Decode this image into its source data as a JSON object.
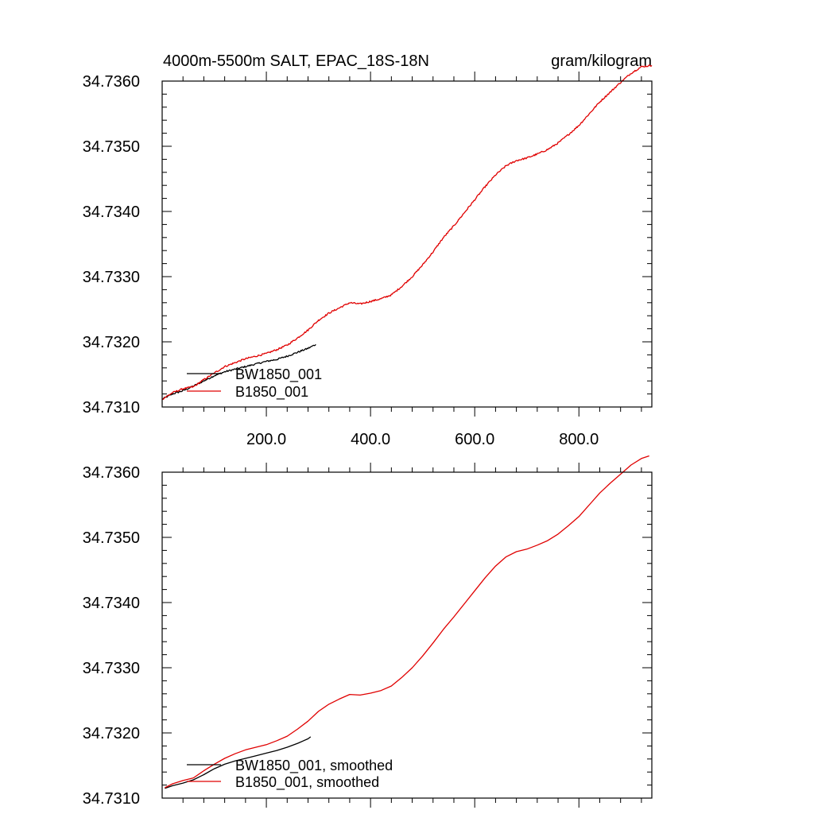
{
  "chart_data": [
    {
      "type": "line",
      "title": "4000m-5500m SALT, EPAC_18S-18N",
      "units": "gram/kilogram",
      "xlabel": "",
      "ylabel": "",
      "xlim": [
        0,
        940
      ],
      "ylim": [
        34.731,
        34.736
      ],
      "xticks": [
        200,
        400,
        600,
        800
      ],
      "xtick_labels": [
        "200.0",
        "400.0",
        "600.0",
        "800.0"
      ],
      "yticks": [
        34.731,
        34.732,
        34.733,
        34.734,
        34.735,
        34.736
      ],
      "ytick_labels": [
        "34.7310",
        "34.7320",
        "34.7330",
        "34.7340",
        "34.7350",
        "34.7360"
      ],
      "legend_position": "bottom-left",
      "noisy": true,
      "series": [
        {
          "name": "BW1850_001",
          "color": "#000000",
          "x": [
            0,
            20,
            40,
            60,
            80,
            100,
            120,
            140,
            160,
            180,
            200,
            220,
            240,
            260,
            280,
            295
          ],
          "y": [
            34.73112,
            34.7312,
            34.73125,
            34.73132,
            34.7314,
            34.73148,
            34.73154,
            34.73158,
            34.73162,
            34.73166,
            34.7317,
            34.73173,
            34.73178,
            34.73184,
            34.7319,
            34.73196
          ]
        },
        {
          "name": "B1850_001",
          "color": "#e00000",
          "x": [
            0,
            20,
            40,
            60,
            80,
            100,
            120,
            140,
            160,
            180,
            200,
            220,
            240,
            260,
            280,
            300,
            320,
            340,
            360,
            380,
            400,
            420,
            440,
            460,
            480,
            500,
            520,
            540,
            560,
            580,
            600,
            620,
            640,
            660,
            680,
            700,
            720,
            740,
            760,
            780,
            800,
            820,
            840,
            860,
            880,
            900,
            920,
            940
          ],
          "y": [
            34.73112,
            34.73122,
            34.73128,
            34.73131,
            34.73142,
            34.73152,
            34.73162,
            34.73168,
            34.73174,
            34.73178,
            34.73182,
            34.73188,
            34.73195,
            34.73206,
            34.73218,
            34.73233,
            34.73244,
            34.73252,
            34.7326,
            34.73258,
            34.73262,
            34.73266,
            34.73272,
            34.73285,
            34.733,
            34.73318,
            34.73338,
            34.7336,
            34.73378,
            34.73398,
            34.73418,
            34.73438,
            34.73456,
            34.7347,
            34.73478,
            34.73482,
            34.73488,
            34.73495,
            34.73505,
            34.73518,
            34.73532,
            34.7355,
            34.73568,
            34.73583,
            34.73598,
            34.73612,
            34.73622,
            34.73624
          ]
        }
      ]
    },
    {
      "type": "line",
      "title": "",
      "xlabel": "",
      "ylabel": "",
      "xlim": [
        0,
        940
      ],
      "ylim": [
        34.731,
        34.736
      ],
      "xticks": [
        200,
        400,
        600,
        800
      ],
      "xtick_labels": [],
      "yticks": [
        34.731,
        34.732,
        34.733,
        34.734,
        34.735,
        34.736
      ],
      "ytick_labels": [
        "34.7310",
        "34.7320",
        "34.7330",
        "34.7340",
        "34.7350",
        "34.7360"
      ],
      "legend_position": "bottom-left",
      "noisy": false,
      "series": [
        {
          "name": "BW1850_001, smoothed",
          "color": "#000000",
          "x": [
            5,
            20,
            40,
            60,
            80,
            100,
            120,
            140,
            160,
            180,
            200,
            220,
            240,
            260,
            280,
            285
          ],
          "y": [
            34.73115,
            34.73119,
            34.73123,
            34.73128,
            34.73136,
            34.73145,
            34.73152,
            34.73157,
            34.73161,
            34.73165,
            34.73169,
            34.73173,
            34.73178,
            34.73184,
            34.73191,
            34.73194
          ]
        },
        {
          "name": "B1850_001, smoothed",
          "color": "#e00000",
          "x": [
            5,
            20,
            40,
            60,
            80,
            100,
            120,
            140,
            160,
            180,
            200,
            220,
            240,
            260,
            280,
            300,
            320,
            340,
            360,
            380,
            400,
            420,
            440,
            460,
            480,
            500,
            520,
            540,
            560,
            580,
            600,
            620,
            640,
            660,
            680,
            700,
            720,
            740,
            760,
            780,
            800,
            820,
            840,
            860,
            880,
            900,
            920,
            935
          ],
          "y": [
            34.73116,
            34.73122,
            34.73127,
            34.73131,
            34.73142,
            34.73152,
            34.73161,
            34.73168,
            34.73174,
            34.73178,
            34.73182,
            34.73188,
            34.73195,
            34.73206,
            34.73218,
            34.73233,
            34.73244,
            34.73252,
            34.73259,
            34.73258,
            34.73261,
            34.73265,
            34.73272,
            34.73285,
            34.733,
            34.73318,
            34.73338,
            34.73359,
            34.73378,
            34.73398,
            34.73418,
            34.73438,
            34.73456,
            34.7347,
            34.73478,
            34.73482,
            34.73488,
            34.73495,
            34.73505,
            34.73518,
            34.73532,
            34.7355,
            34.73568,
            34.73583,
            34.73597,
            34.73611,
            34.73621,
            34.73625
          ]
        }
      ]
    }
  ]
}
